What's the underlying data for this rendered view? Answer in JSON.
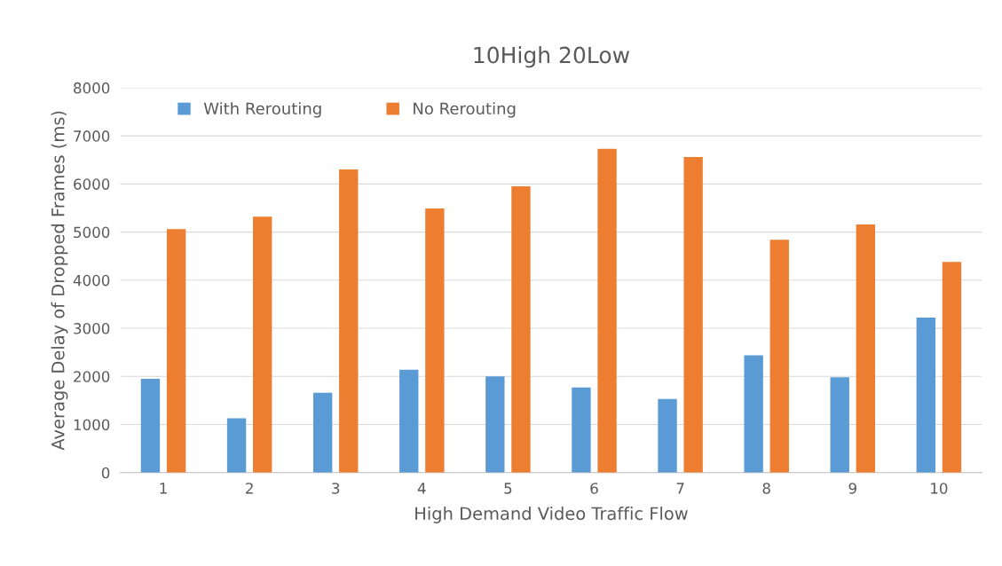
{
  "chart_data": {
    "type": "bar",
    "title": "10High 20Low",
    "xlabel": "High Demand Video Traffic Flow",
    "ylabel": "Average Delay of Dropped Frames (ms)",
    "categories": [
      "1",
      "2",
      "3",
      "4",
      "5",
      "6",
      "7",
      "8",
      "9",
      "10"
    ],
    "series": [
      {
        "name": "With Rerouting",
        "color": "#5b9bd5",
        "values": [
          1950,
          1130,
          1660,
          2140,
          2000,
          1770,
          1530,
          2440,
          1980,
          3220
        ]
      },
      {
        "name": "No Rerouting",
        "color": "#ed7d31",
        "values": [
          5060,
          5320,
          6300,
          5490,
          5950,
          6730,
          6560,
          4840,
          5160,
          4380
        ]
      }
    ],
    "ylim": [
      0,
      8000
    ],
    "yticks": [
      0,
      1000,
      2000,
      3000,
      4000,
      5000,
      6000,
      7000,
      8000
    ],
    "grid": "y",
    "legend": "top left"
  }
}
